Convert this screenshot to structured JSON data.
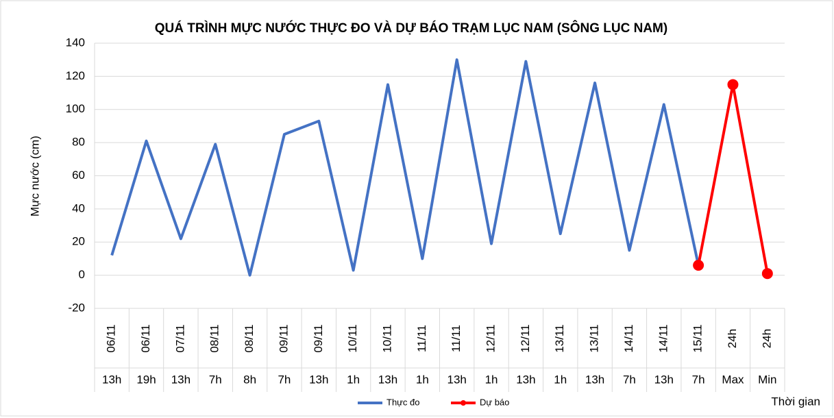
{
  "chart_data": {
    "type": "line",
    "title": "QUÁ TRÌNH MỰC NƯỚC THỰC ĐO VÀ DỰ BÁO TRẠM LỤC NAM (SÔNG LỤC NAM)",
    "y_label": "Mực nước (cm)",
    "x_label": "Thời gian",
    "categories": [
      "06/11",
      "06/11",
      "07/11",
      "08/11",
      "08/11",
      "09/11",
      "09/11",
      "10/11",
      "10/11",
      "11/11",
      "11/11",
      "12/11",
      "12/11",
      "13/11",
      "13/11",
      "14/11",
      "14/11",
      "15/11",
      "24h",
      "24h"
    ],
    "sub_categories": [
      "13h",
      "19h",
      "13h",
      "7h",
      "8h",
      "7h",
      "13h",
      "1h",
      "13h",
      "1h",
      "13h",
      "1h",
      "13h",
      "1h",
      "13h",
      "7h",
      "13h",
      "7h",
      "Max",
      "Min"
    ],
    "series": [
      {
        "name": "Thực đo",
        "color": "#4472c4",
        "marker": false,
        "values": [
          12,
          81,
          22,
          79,
          0,
          85,
          93,
          3,
          115,
          10,
          130,
          19,
          129,
          25,
          116,
          15,
          103,
          6,
          null,
          null
        ]
      },
      {
        "name": "Dự báo",
        "color": "#ff0000",
        "marker": true,
        "values": [
          null,
          null,
          null,
          null,
          null,
          null,
          null,
          null,
          null,
          null,
          null,
          null,
          null,
          null,
          null,
          null,
          null,
          6,
          115,
          1
        ]
      }
    ],
    "ylim": [
      -20,
      140
    ],
    "yticks": [
      -20,
      0,
      20,
      40,
      60,
      80,
      100,
      120,
      140
    ],
    "grid": true,
    "legend": "bottom"
  }
}
